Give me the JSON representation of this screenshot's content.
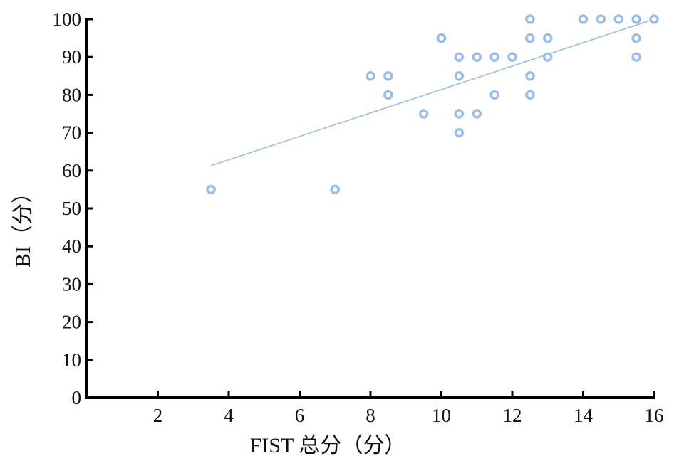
{
  "chart_data": {
    "type": "scatter",
    "xlabel": "FIST 总分（分）",
    "ylabel": "BI（分）",
    "xlim": [
      0,
      16
    ],
    "ylim": [
      0,
      100
    ],
    "x_ticks": [
      2,
      4,
      6,
      8,
      10,
      12,
      14,
      16
    ],
    "y_ticks": [
      0,
      10,
      20,
      30,
      40,
      50,
      60,
      70,
      80,
      90,
      100
    ],
    "grid": false,
    "legend": "none",
    "point_color": "#9dbde3",
    "line_color": "#9dbde3",
    "points": [
      {
        "x": 3.5,
        "y": 55
      },
      {
        "x": 7,
        "y": 55
      },
      {
        "x": 8,
        "y": 85
      },
      {
        "x": 8.5,
        "y": 85
      },
      {
        "x": 8.5,
        "y": 80
      },
      {
        "x": 9.5,
        "y": 75
      },
      {
        "x": 10,
        "y": 95
      },
      {
        "x": 10.5,
        "y": 90
      },
      {
        "x": 10.5,
        "y": 85
      },
      {
        "x": 10.5,
        "y": 75
      },
      {
        "x": 10.5,
        "y": 70
      },
      {
        "x": 11,
        "y": 90
      },
      {
        "x": 11,
        "y": 75
      },
      {
        "x": 11.5,
        "y": 90
      },
      {
        "x": 11.5,
        "y": 80
      },
      {
        "x": 12,
        "y": 90
      },
      {
        "x": 12.5,
        "y": 100
      },
      {
        "x": 12.5,
        "y": 95
      },
      {
        "x": 12.5,
        "y": 85
      },
      {
        "x": 12.5,
        "y": 80
      },
      {
        "x": 13,
        "y": 95
      },
      {
        "x": 13,
        "y": 90
      },
      {
        "x": 14,
        "y": 100
      },
      {
        "x": 14.5,
        "y": 100
      },
      {
        "x": 15,
        "y": 100
      },
      {
        "x": 15.5,
        "y": 100
      },
      {
        "x": 15.5,
        "y": 95
      },
      {
        "x": 15.5,
        "y": 90
      },
      {
        "x": 16,
        "y": 100
      }
    ],
    "trendline": {
      "x": [
        3.5,
        16
      ],
      "y": [
        61.3,
        100
      ]
    }
  }
}
